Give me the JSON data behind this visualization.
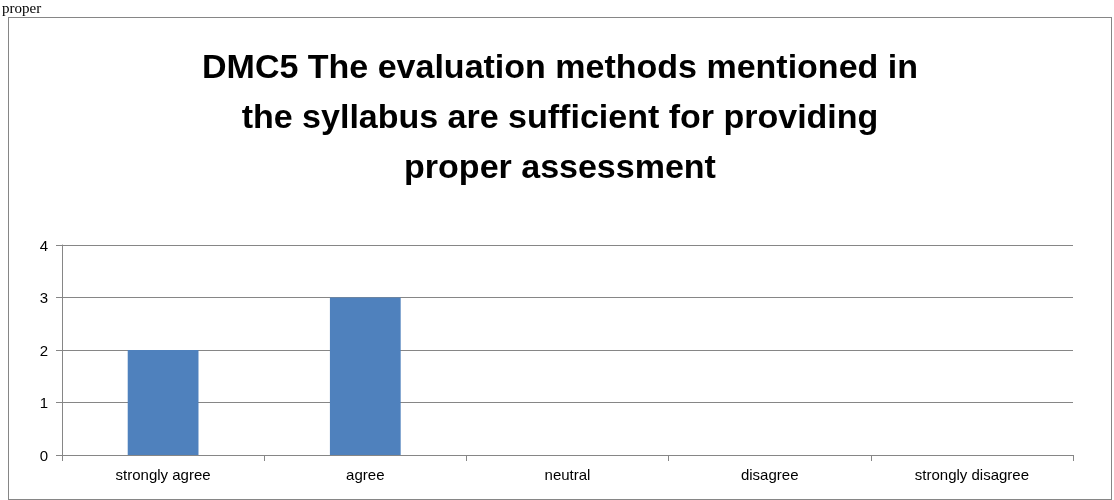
{
  "chart_data": {
    "type": "bar",
    "title": "DMC5 The evaluation methods mentioned in the syllabus are sufficient for providing proper assessment",
    "categories": [
      "strongly agree",
      "agree",
      "neutral",
      "disagree",
      "strongly disagree"
    ],
    "values": [
      2,
      3,
      0,
      0,
      0
    ],
    "color": "#4f81bd",
    "ylim": [
      0,
      4
    ],
    "yticks": [
      0,
      1,
      2,
      3,
      4
    ],
    "grid": "y",
    "annotations": [
      "proper"
    ]
  }
}
